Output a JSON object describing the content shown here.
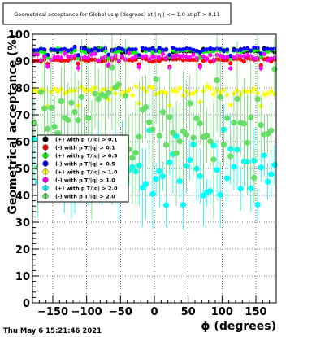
{
  "chart_data": {
    "type": "scatter",
    "title": "Geometrical acceptance for Global vs φ (degrees) at | η | <= 1.0 at pT > 0.11",
    "xlabel": "ϕ (degrees)",
    "ylabel": "Geometrical acceptance (%)",
    "xlim": [
      -180,
      180
    ],
    "ylim": [
      0,
      100
    ],
    "x_ticks": [
      -150,
      -100,
      -50,
      0,
      50,
      100,
      150
    ],
    "x_tick_labels": [
      "−150",
      "−100",
      "−50",
      "0",
      "50",
      "100",
      "150"
    ],
    "y_ticks": [
      0,
      10,
      20,
      30,
      40,
      50,
      60,
      70,
      80,
      90,
      100
    ],
    "y_tick_labels": [
      "0",
      "10",
      "20",
      "30",
      "40",
      "50",
      "60",
      "70",
      "80",
      "90",
      "100"
    ],
    "grid": true,
    "legend_position": "left-middle",
    "timestamp": "Thu May  6 15:21:46 2021",
    "series": [
      {
        "name": "(+) with p T/|q| > 0.1",
        "color": "#000000",
        "mean": 94.0,
        "spread": 0.6
      },
      {
        "name": "(-) with p T/|q| > 0.1",
        "color": "#ff0000",
        "mean": 90.5,
        "spread": 0.5
      },
      {
        "name": "(+) with p T/|q| > 0.5",
        "color": "#00ff00",
        "mean": 93.8,
        "spread": 0.6
      },
      {
        "name": "(-) with p T/|q| > 0.5",
        "color": "#0000ff",
        "mean": 94.5,
        "spread": 0.5
      },
      {
        "name": "(+) with p T/|q| > 1.0",
        "color": "#ffff00",
        "mean": 79.0,
        "spread": 1.2
      },
      {
        "name": "(-) with p T/|q| > 1.0",
        "color": "#ff00ff",
        "mean": 91.5,
        "spread": 1.0
      },
      {
        "name": "(+) with p T/|q| > 2.0",
        "color": "#00ffff",
        "mean": 50.0,
        "spread": 9.0
      },
      {
        "name": "(-) with p T/|q| > 2.0",
        "color": "#66dd66",
        "mean": 68.0,
        "spread": 14.0
      }
    ]
  }
}
